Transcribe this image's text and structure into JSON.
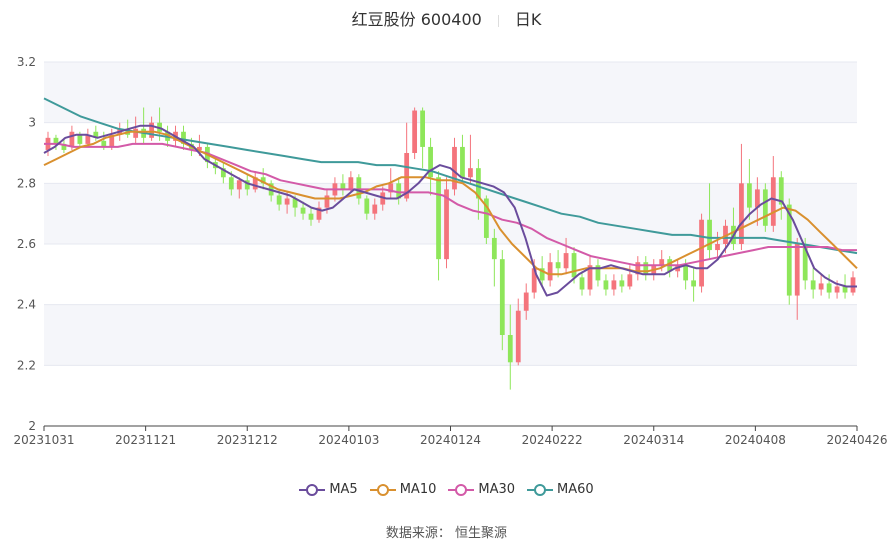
{
  "header": {
    "stock": "红豆股份 600400",
    "period": "日K"
  },
  "source": "数据来源： 恒生聚源",
  "colors": {
    "up": "#f4747c",
    "down": "#8ee65a",
    "MA5": "#6a4c9c",
    "MA10": "#d9902f",
    "MA30": "#d35aa8",
    "MA60": "#3f9a9a",
    "grid": "#e6e8f0",
    "band": "#f5f6fa"
  },
  "chart_data": {
    "type": "candlestick",
    "ylim": [
      2,
      3.2
    ],
    "yticks": [
      "2",
      "2.2",
      "2.4",
      "2.6",
      "2.8",
      "3",
      "3.2"
    ],
    "xticks": [
      "20231031",
      "20231121",
      "20231212",
      "20240103",
      "20240124",
      "20240222",
      "20240314",
      "20240408",
      "20240426"
    ],
    "legend": [
      "MA5",
      "MA10",
      "MA30",
      "MA60"
    ],
    "candles": [
      [
        2.91,
        2.95,
        2.97,
        2.89
      ],
      [
        2.95,
        2.93,
        2.96,
        2.91
      ],
      [
        2.93,
        2.91,
        2.95,
        2.9
      ],
      [
        2.92,
        2.97,
        2.99,
        2.91
      ],
      [
        2.96,
        2.93,
        2.97,
        2.92
      ],
      [
        2.93,
        2.96,
        2.98,
        2.92
      ],
      [
        2.97,
        2.95,
        2.99,
        2.94
      ],
      [
        2.94,
        2.92,
        2.97,
        2.91
      ],
      [
        2.92,
        2.96,
        2.98,
        2.91
      ],
      [
        2.96,
        2.98,
        3.0,
        2.94
      ],
      [
        2.98,
        2.96,
        3.01,
        2.95
      ],
      [
        2.95,
        2.98,
        3.02,
        2.93
      ],
      [
        2.98,
        2.95,
        3.05,
        2.93
      ],
      [
        2.95,
        3.0,
        3.02,
        2.94
      ],
      [
        3.0,
        2.97,
        3.05,
        2.94
      ],
      [
        2.97,
        2.94,
        2.99,
        2.92
      ],
      [
        2.94,
        2.97,
        2.99,
        2.92
      ],
      [
        2.97,
        2.93,
        2.99,
        2.91
      ],
      [
        2.93,
        2.91,
        2.95,
        2.89
      ],
      [
        2.91,
        2.92,
        2.96,
        2.89
      ],
      [
        2.92,
        2.87,
        2.93,
        2.85
      ],
      [
        2.87,
        2.85,
        2.89,
        2.83
      ],
      [
        2.85,
        2.82,
        2.87,
        2.8
      ],
      [
        2.82,
        2.78,
        2.84,
        2.76
      ],
      [
        2.78,
        2.81,
        2.82,
        2.75
      ],
      [
        2.81,
        2.78,
        2.83,
        2.76
      ],
      [
        2.78,
        2.82,
        2.84,
        2.77
      ],
      [
        2.82,
        2.8,
        2.85,
        2.78
      ],
      [
        2.8,
        2.76,
        2.81,
        2.74
      ],
      [
        2.76,
        2.73,
        2.78,
        2.71
      ],
      [
        2.73,
        2.75,
        2.77,
        2.7
      ],
      [
        2.75,
        2.72,
        2.76,
        2.69
      ],
      [
        2.72,
        2.7,
        2.74,
        2.68
      ],
      [
        2.7,
        2.68,
        2.72,
        2.66
      ],
      [
        2.68,
        2.72,
        2.74,
        2.67
      ],
      [
        2.72,
        2.76,
        2.78,
        2.7
      ],
      [
        2.76,
        2.8,
        2.82,
        2.74
      ],
      [
        2.8,
        2.78,
        2.83,
        2.76
      ],
      [
        2.78,
        2.82,
        2.84,
        2.77
      ],
      [
        2.82,
        2.75,
        2.83,
        2.73
      ],
      [
        2.75,
        2.7,
        2.76,
        2.68
      ],
      [
        2.7,
        2.73,
        2.75,
        2.68
      ],
      [
        2.73,
        2.77,
        2.79,
        2.71
      ],
      [
        2.77,
        2.8,
        2.85,
        2.75
      ],
      [
        2.8,
        2.75,
        2.82,
        2.73
      ],
      [
        2.75,
        2.9,
        3.0,
        2.74
      ],
      [
        2.9,
        3.04,
        3.05,
        2.88
      ],
      [
        3.04,
        2.92,
        3.05,
        2.85
      ],
      [
        2.92,
        2.82,
        2.95,
        2.76
      ],
      [
        2.82,
        2.55,
        2.84,
        2.48
      ],
      [
        2.55,
        2.78,
        2.82,
        2.52
      ],
      [
        2.78,
        2.92,
        2.95,
        2.76
      ],
      [
        2.92,
        2.82,
        2.96,
        2.8
      ],
      [
        2.82,
        2.85,
        2.96,
        2.8
      ],
      [
        2.85,
        2.75,
        2.88,
        2.68
      ],
      [
        2.75,
        2.62,
        2.76,
        2.6
      ],
      [
        2.62,
        2.55,
        2.65,
        2.46
      ],
      [
        2.55,
        2.3,
        2.58,
        2.25
      ],
      [
        2.3,
        2.21,
        2.4,
        2.12
      ],
      [
        2.21,
        2.38,
        2.42,
        2.2
      ],
      [
        2.38,
        2.44,
        2.47,
        2.35
      ],
      [
        2.44,
        2.52,
        2.55,
        2.42
      ],
      [
        2.52,
        2.48,
        2.56,
        2.46
      ],
      [
        2.48,
        2.54,
        2.57,
        2.46
      ],
      [
        2.54,
        2.52,
        2.58,
        2.49
      ],
      [
        2.52,
        2.57,
        2.62,
        2.5
      ],
      [
        2.57,
        2.49,
        2.59,
        2.47
      ],
      [
        2.49,
        2.45,
        2.51,
        2.43
      ],
      [
        2.45,
        2.53,
        2.56,
        2.43
      ],
      [
        2.53,
        2.48,
        2.55,
        2.46
      ],
      [
        2.48,
        2.45,
        2.5,
        2.43
      ],
      [
        2.45,
        2.48,
        2.5,
        2.43
      ],
      [
        2.48,
        2.46,
        2.5,
        2.44
      ],
      [
        2.46,
        2.5,
        2.53,
        2.45
      ],
      [
        2.5,
        2.54,
        2.56,
        2.48
      ],
      [
        2.54,
        2.5,
        2.56,
        2.48
      ],
      [
        2.5,
        2.53,
        2.55,
        2.48
      ],
      [
        2.53,
        2.55,
        2.58,
        2.51
      ],
      [
        2.55,
        2.51,
        2.56,
        2.49
      ],
      [
        2.51,
        2.53,
        2.55,
        2.49
      ],
      [
        2.53,
        2.48,
        2.55,
        2.45
      ],
      [
        2.48,
        2.46,
        2.52,
        2.41
      ],
      [
        2.46,
        2.68,
        2.7,
        2.44
      ],
      [
        2.68,
        2.58,
        2.8,
        2.55
      ],
      [
        2.58,
        2.6,
        2.64,
        2.55
      ],
      [
        2.6,
        2.66,
        2.68,
        2.57
      ],
      [
        2.66,
        2.6,
        2.72,
        2.58
      ],
      [
        2.6,
        2.8,
        2.93,
        2.58
      ],
      [
        2.8,
        2.72,
        2.88,
        2.68
      ],
      [
        2.72,
        2.78,
        2.82,
        2.66
      ],
      [
        2.78,
        2.66,
        2.8,
        2.64
      ],
      [
        2.66,
        2.82,
        2.89,
        2.64
      ],
      [
        2.82,
        2.73,
        2.84,
        2.68
      ],
      [
        2.73,
        2.43,
        2.75,
        2.4
      ],
      [
        2.43,
        2.6,
        2.62,
        2.35
      ],
      [
        2.6,
        2.48,
        2.62,
        2.45
      ],
      [
        2.48,
        2.45,
        2.52,
        2.42
      ],
      [
        2.45,
        2.47,
        2.5,
        2.43
      ],
      [
        2.47,
        2.44,
        2.5,
        2.42
      ],
      [
        2.44,
        2.46,
        2.48,
        2.42
      ],
      [
        2.46,
        2.44,
        2.5,
        2.42
      ],
      [
        2.44,
        2.49,
        2.51,
        2.43
      ]
    ],
    "ma5": [
      2.9,
      2.92,
      2.95,
      2.96,
      2.96,
      2.95,
      2.96,
      2.97,
      2.98,
      2.99,
      2.99,
      2.98,
      2.96,
      2.94,
      2.92,
      2.88,
      2.86,
      2.84,
      2.82,
      2.8,
      2.79,
      2.78,
      2.77,
      2.76,
      2.74,
      2.72,
      2.71,
      2.72,
      2.75,
      2.78,
      2.77,
      2.76,
      2.75,
      2.75,
      2.77,
      2.8,
      2.84,
      2.86,
      2.85,
      2.82,
      2.81,
      2.8,
      2.79,
      2.77,
      2.72,
      2.62,
      2.5,
      2.43,
      2.44,
      2.47,
      2.5,
      2.52,
      2.52,
      2.53,
      2.52,
      2.51,
      2.5,
      2.5,
      2.5,
      2.52,
      2.53,
      2.52,
      2.52,
      2.55,
      2.6,
      2.66,
      2.7,
      2.73,
      2.75,
      2.74,
      2.68,
      2.6,
      2.52,
      2.49,
      2.47,
      2.46,
      2.46
    ],
    "ma10": [
      2.86,
      2.88,
      2.9,
      2.92,
      2.93,
      2.95,
      2.96,
      2.97,
      2.97,
      2.97,
      2.96,
      2.94,
      2.92,
      2.9,
      2.88,
      2.86,
      2.84,
      2.82,
      2.8,
      2.78,
      2.77,
      2.76,
      2.75,
      2.75,
      2.75,
      2.76,
      2.77,
      2.79,
      2.8,
      2.82,
      2.82,
      2.82,
      2.81,
      2.81,
      2.8,
      2.77,
      2.72,
      2.65,
      2.6,
      2.56,
      2.52,
      2.5,
      2.5,
      2.51,
      2.52,
      2.52,
      2.52,
      2.52,
      2.51,
      2.51,
      2.52,
      2.54,
      2.56,
      2.58,
      2.6,
      2.62,
      2.64,
      2.66,
      2.68,
      2.7,
      2.72,
      2.71,
      2.68,
      2.64,
      2.6,
      2.56,
      2.52
    ],
    "ma30": [
      2.93,
      2.93,
      2.92,
      2.92,
      2.92,
      2.92,
      2.93,
      2.93,
      2.93,
      2.92,
      2.91,
      2.9,
      2.88,
      2.86,
      2.84,
      2.83,
      2.81,
      2.8,
      2.79,
      2.78,
      2.78,
      2.78,
      2.78,
      2.78,
      2.77,
      2.77,
      2.77,
      2.76,
      2.73,
      2.71,
      2.7,
      2.68,
      2.67,
      2.65,
      2.62,
      2.6,
      2.58,
      2.56,
      2.55,
      2.54,
      2.53,
      2.53,
      2.53,
      2.53,
      2.54,
      2.55,
      2.56,
      2.57,
      2.58,
      2.59,
      2.59,
      2.59,
      2.59,
      2.59,
      2.58,
      2.58
    ],
    "ma60": [
      3.08,
      3.05,
      3.02,
      3.0,
      2.98,
      2.97,
      2.96,
      2.95,
      2.94,
      2.93,
      2.92,
      2.91,
      2.9,
      2.89,
      2.88,
      2.87,
      2.87,
      2.87,
      2.86,
      2.86,
      2.85,
      2.84,
      2.82,
      2.8,
      2.78,
      2.76,
      2.74,
      2.72,
      2.7,
      2.69,
      2.67,
      2.66,
      2.65,
      2.64,
      2.63,
      2.63,
      2.62,
      2.62,
      2.62,
      2.62,
      2.61,
      2.6,
      2.59,
      2.58,
      2.57
    ]
  }
}
